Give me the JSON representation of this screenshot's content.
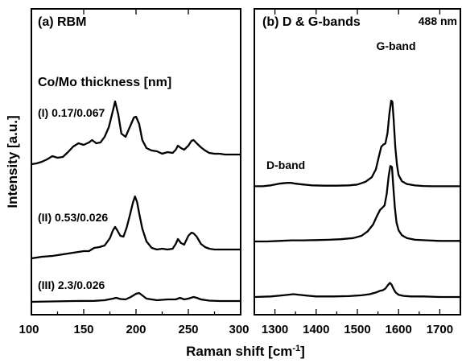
{
  "chart_data": [
    {
      "type": "line",
      "panel": "a",
      "title": "(a) RBM",
      "subtitle": "Co/Mo thickness [nm]",
      "ylabel": "Intensity [a.u.]",
      "xlabel": "Raman shift [cm-1]",
      "xlim": [
        100,
        300
      ],
      "xticks": [
        100,
        150,
        200,
        250,
        300
      ],
      "yticks_shown": false,
      "series": [
        {
          "name": "(I) 0.17/0.067",
          "x": [
            100,
            105,
            110,
            115,
            120,
            125,
            130,
            135,
            140,
            145,
            150,
            155,
            158,
            162,
            166,
            170,
            174,
            178,
            180,
            183,
            186,
            190,
            194,
            198,
            200,
            203,
            206,
            210,
            215,
            220,
            225,
            230,
            235,
            238,
            240,
            243,
            246,
            250,
            253,
            255,
            258,
            262,
            266,
            270,
            275,
            280,
            285,
            290,
            295,
            300
          ],
          "y": [
            4.0,
            4.1,
            4.3,
            4.6,
            5.0,
            4.8,
            4.9,
            5.5,
            6.2,
            6.6,
            6.4,
            6.7,
            7.0,
            6.6,
            6.7,
            7.4,
            8.6,
            10.7,
            11.8,
            10.2,
            7.8,
            7.4,
            8.6,
            9.8,
            9.9,
            9.0,
            7.0,
            6.0,
            5.7,
            5.6,
            5.3,
            5.5,
            5.4,
            5.8,
            6.3,
            6.0,
            5.8,
            6.3,
            6.9,
            7.0,
            6.6,
            6.1,
            5.7,
            5.4,
            5.3,
            5.3,
            5.2,
            5.2,
            5.2,
            5.2
          ]
        },
        {
          "name": "(II) 0.53/0.026",
          "x": [
            100,
            110,
            120,
            130,
            140,
            150,
            155,
            160,
            165,
            170,
            175,
            178,
            180,
            182,
            185,
            188,
            191,
            194,
            197,
            199,
            201,
            203,
            206,
            210,
            215,
            220,
            225,
            230,
            235,
            238,
            240,
            243,
            246,
            250,
            253,
            255,
            258,
            262,
            266,
            270,
            275,
            280,
            290,
            300
          ],
          "y": [
            0.5,
            0.7,
            0.8,
            1.0,
            1.2,
            1.4,
            1.4,
            1.8,
            1.9,
            2.1,
            3.0,
            4.0,
            4.4,
            4.0,
            3.3,
            3.2,
            4.3,
            5.8,
            7.4,
            8.2,
            7.5,
            6.1,
            4.2,
            2.6,
            1.8,
            1.6,
            1.7,
            1.6,
            1.7,
            2.3,
            2.9,
            2.4,
            2.2,
            3.3,
            3.7,
            3.6,
            3.2,
            2.3,
            1.9,
            1.7,
            1.6,
            1.6,
            1.6,
            1.6
          ]
        },
        {
          "name": "(III) 2.3/0.026",
          "x": [
            100,
            120,
            140,
            160,
            170,
            178,
            181,
            185,
            190,
            195,
            200,
            203,
            206,
            210,
            220,
            230,
            238,
            242,
            246,
            250,
            255,
            258,
            262,
            270,
            280,
            290,
            300
          ],
          "y": [
            0.0,
            0.05,
            0.1,
            0.12,
            0.2,
            0.4,
            0.5,
            0.35,
            0.3,
            0.6,
            1.0,
            1.1,
            0.8,
            0.4,
            0.2,
            0.3,
            0.3,
            0.5,
            0.3,
            0.4,
            0.6,
            0.5,
            0.3,
            0.15,
            0.1,
            0.1,
            0.1
          ]
        }
      ]
    },
    {
      "type": "line",
      "panel": "b",
      "title": "(b) D & G-bands",
      "annotation_laser": "488 nm",
      "annotation_g": "G-band",
      "annotation_d": "D-band",
      "xlabel": "Raman shift [cm-1]",
      "xlim": [
        1250,
        1750
      ],
      "xticks": [
        1300,
        1400,
        1500,
        1600,
        1700
      ],
      "yticks_shown": false,
      "series": [
        {
          "name": "(I) 0.17/0.067",
          "x": [
            1250,
            1270,
            1290,
            1310,
            1330,
            1340,
            1350,
            1370,
            1390,
            1420,
            1450,
            1480,
            1500,
            1520,
            1535,
            1545,
            1552,
            1558,
            1563,
            1568,
            1573,
            1578,
            1582,
            1585,
            1588,
            1592,
            1596,
            1600,
            1608,
            1620,
            1640,
            1660,
            1680,
            1700,
            1720,
            1740,
            1750
          ],
          "y": [
            0.4,
            0.4,
            0.48,
            0.63,
            0.7,
            0.7,
            0.63,
            0.55,
            0.48,
            0.45,
            0.45,
            0.48,
            0.55,
            0.8,
            1.2,
            1.9,
            3.0,
            3.9,
            4.1,
            4.2,
            5.1,
            6.9,
            8.0,
            7.9,
            6.3,
            3.9,
            2.3,
            1.4,
            0.85,
            0.6,
            0.47,
            0.42,
            0.4,
            0.4,
            0.4,
            0.4,
            0.4
          ]
        },
        {
          "name": "(II) 0.53/0.026",
          "x": [
            1250,
            1280,
            1310,
            1340,
            1370,
            1400,
            1430,
            1460,
            1490,
            1510,
            1525,
            1538,
            1548,
            1555,
            1561,
            1566,
            1571,
            1576,
            1580,
            1584,
            1587,
            1591,
            1595,
            1600,
            1608,
            1620,
            1640,
            1670,
            1700,
            1730,
            1750
          ],
          "y": [
            0.0,
            0.0,
            0.05,
            0.1,
            0.1,
            0.12,
            0.15,
            0.2,
            0.3,
            0.5,
            0.9,
            1.5,
            2.3,
            2.8,
            3.0,
            3.2,
            4.2,
            5.8,
            6.7,
            6.6,
            5.0,
            3.0,
            1.7,
            1.0,
            0.55,
            0.3,
            0.15,
            0.1,
            0.05,
            0.05,
            0.05
          ]
        },
        {
          "name": "(III) 2.3/0.026",
          "x": [
            1250,
            1290,
            1320,
            1345,
            1370,
            1400,
            1440,
            1480,
            1510,
            1530,
            1545,
            1555,
            1562,
            1568,
            1574,
            1579,
            1583,
            1588,
            1593,
            1600,
            1612,
            1630,
            1660,
            1700,
            1750
          ],
          "y": [
            0.0,
            0.05,
            0.15,
            0.25,
            0.15,
            0.05,
            0.05,
            0.08,
            0.15,
            0.25,
            0.4,
            0.55,
            0.6,
            0.75,
            1.05,
            1.25,
            1.1,
            0.7,
            0.4,
            0.2,
            0.1,
            0.05,
            0.05,
            0.0,
            0.0
          ]
        }
      ]
    }
  ]
}
